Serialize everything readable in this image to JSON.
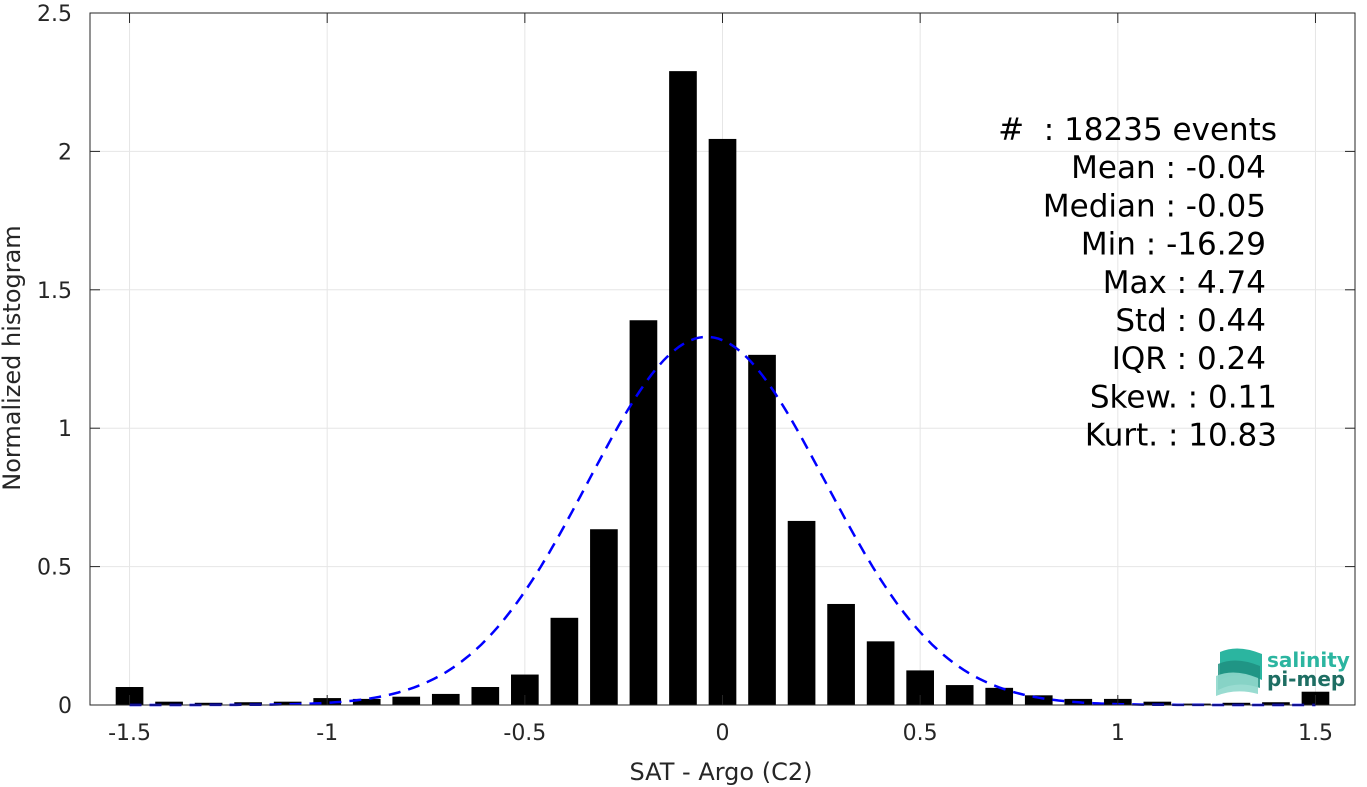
{
  "chart_data": {
    "type": "bar",
    "xlabel": "SAT - Argo (C2)",
    "ylabel": "Normalized histogram",
    "xlim": [
      -1.6,
      1.6
    ],
    "ylim": [
      0,
      2.5
    ],
    "xticks": [
      -1.5,
      -1,
      -0.5,
      0,
      0.5,
      1,
      1.5
    ],
    "xtick_labels": [
      "-1.5",
      "-1",
      "-0.5",
      "0",
      "0.5",
      "1",
      "1.5"
    ],
    "yticks": [
      0,
      0.5,
      1,
      1.5,
      2,
      2.5
    ],
    "ytick_labels": [
      "0",
      "0.5",
      "1",
      "1.5",
      "2",
      "2.5"
    ],
    "grid": true,
    "bar_width": 0.07,
    "bars": {
      "x": [
        -1.5,
        -1.4,
        -1.3,
        -1.2,
        -1.1,
        -1.0,
        -0.9,
        -0.8,
        -0.7,
        -0.6,
        -0.5,
        -0.4,
        -0.3,
        -0.2,
        -0.1,
        0.0,
        0.1,
        0.2,
        0.3,
        0.4,
        0.5,
        0.6,
        0.7,
        0.8,
        0.9,
        1.0,
        1.1,
        1.2,
        1.3,
        1.4,
        1.5
      ],
      "values": [
        0.065,
        0.012,
        0.008,
        0.01,
        0.012,
        0.025,
        0.022,
        0.03,
        0.04,
        0.065,
        0.11,
        0.315,
        0.635,
        1.39,
        2.29,
        2.045,
        1.265,
        0.665,
        0.365,
        0.23,
        0.125,
        0.072,
        0.062,
        0.035,
        0.022,
        0.022,
        0.012,
        0.005,
        0.008,
        0.01,
        0.048
      ],
      "color": "#000000"
    },
    "fit_curve": {
      "style": "dashed",
      "color": "#0000ff",
      "mean": -0.04,
      "std": 0.3
    }
  },
  "stats": {
    "lines": [
      "#  : 18235 events",
      "Mean : -0.04",
      "Median : -0.05",
      "Min : -16.29",
      "Max : 4.74",
      "Std : 0.44",
      "IQR : 0.24",
      "Skew. : 0.11",
      "Kurt. : 10.83"
    ]
  },
  "logo": {
    "line1": "salinity",
    "line2": "pi-mep",
    "color1": "#2bb5a0",
    "color2": "#1e6e63"
  }
}
